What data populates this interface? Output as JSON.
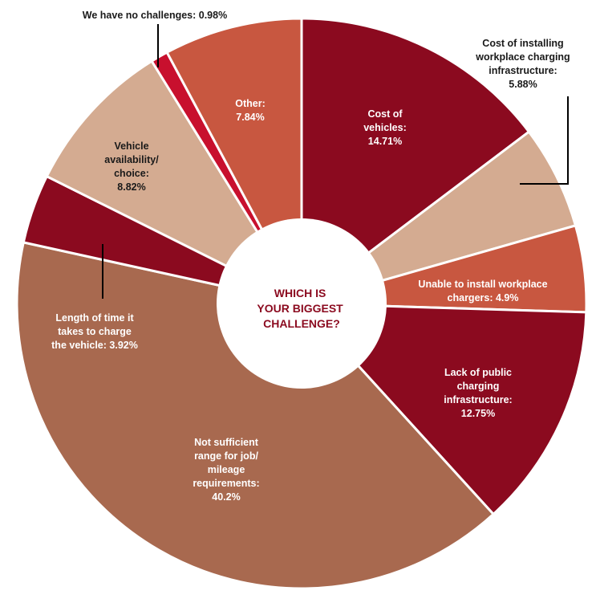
{
  "colors": {
    "dark_red": "#8b0a1f",
    "light_tan": "#d4ab91",
    "orange_red": "#c85740",
    "brown": "#a8694f",
    "bright_red": "#c8102e",
    "label_light": "#ffffff",
    "label_dark": "#1a1a1a"
  },
  "chart_data": {
    "type": "pie",
    "title": "WHICH IS YOUR BIGGEST CHALLENGE?",
    "title_lines": [
      "WHICH IS",
      "YOUR BIGGEST",
      "CHALLENGE?"
    ],
    "unit": "%",
    "slices": [
      {
        "label": "Cost of vehicles",
        "value": 14.71,
        "color": "#8b0a1f",
        "label_lines": [
          "Cost of",
          "vehicles:",
          "14.71%"
        ]
      },
      {
        "label": "Cost of installing workplace charging infrastructure",
        "value": 5.88,
        "color": "#d4ab91",
        "label_lines": [
          "Cost of installing",
          "workplace charging",
          "infrastructure:",
          "5.88%"
        ]
      },
      {
        "label": "Unable to install workplace chargers",
        "value": 4.9,
        "color": "#c85740",
        "label_lines": [
          "Unable to install workplace",
          "chargers: 4.9%"
        ]
      },
      {
        "label": "Lack of public charging infrastructure",
        "value": 12.75,
        "color": "#8b0a1f",
        "label_lines": [
          "Lack of public",
          "charging",
          "infrastructure:",
          "12.75%"
        ]
      },
      {
        "label": "Not sufficient range for job/mileage requirements",
        "value": 40.2,
        "color": "#a8694f",
        "label_lines": [
          "Not sufficient",
          "range for job/",
          "mileage",
          "requirements:",
          "40.2%"
        ]
      },
      {
        "label": "Length of time it takes to charge the vehicle",
        "value": 3.92,
        "color": "#8b0a1f",
        "label_lines": [
          "Length of time it",
          "takes to charge",
          "the vehicle: 3.92%"
        ]
      },
      {
        "label": "Vehicle availability/choice",
        "value": 8.82,
        "color": "#d4ab91",
        "label_lines": [
          "Vehicle",
          "availability/",
          "choice:",
          "8.82%"
        ]
      },
      {
        "label": "We have no challenges",
        "value": 0.98,
        "color": "#c8102e",
        "label_lines": [
          "We have no challenges: 0.98%"
        ]
      },
      {
        "label": "Other",
        "value": 7.84,
        "color": "#c85740",
        "label_lines": [
          "Other:",
          "7.84%"
        ]
      }
    ]
  }
}
